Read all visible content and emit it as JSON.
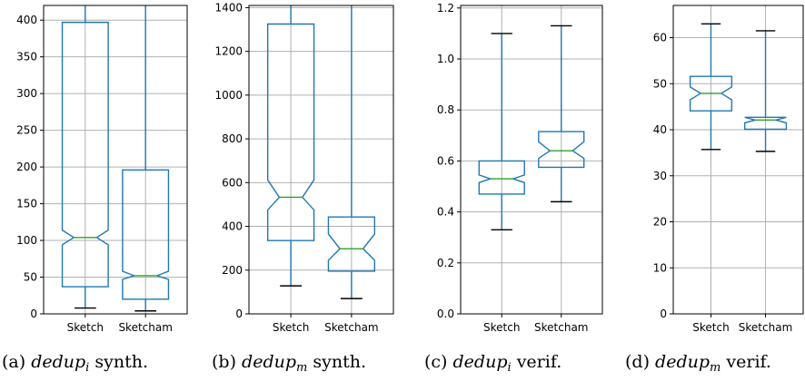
{
  "chart_data": [
    {
      "type": "box",
      "notched": true,
      "categories": [
        "Sketch",
        "Sketcham"
      ],
      "ylim": [
        0,
        420
      ],
      "yticks": [
        0,
        50,
        100,
        150,
        200,
        250,
        300,
        350,
        400
      ],
      "grid": true,
      "boxes": [
        {
          "name": "Sketch",
          "whislo": 8,
          "q1": 37,
          "med": 104,
          "q3": 397,
          "whishi": 420,
          "notch_lo": 94,
          "notch_hi": 114
        },
        {
          "name": "Sketcham",
          "whislo": 4,
          "q1": 20,
          "med": 52,
          "q3": 196,
          "whishi": 420,
          "notch_lo": 47,
          "notch_hi": 58
        }
      ],
      "caption": {
        "label": "(a)",
        "name": "dedup",
        "sub": "i",
        "suffix": "synth."
      }
    },
    {
      "type": "box",
      "notched": true,
      "categories": [
        "Sketch",
        "Sketcham"
      ],
      "ylim": [
        0,
        1410
      ],
      "yticks": [
        0,
        200,
        400,
        600,
        800,
        1000,
        1200,
        1400
      ],
      "grid": true,
      "boxes": [
        {
          "name": "Sketch",
          "whislo": 128,
          "q1": 335,
          "med": 533,
          "q3": 1325,
          "whishi": 1410,
          "notch_lo": 475,
          "notch_hi": 612
        },
        {
          "name": "Sketcham",
          "whislo": 70,
          "q1": 195,
          "med": 298,
          "q3": 443,
          "whishi": 1410,
          "notch_lo": 245,
          "notch_hi": 365
        }
      ],
      "caption": {
        "label": "(b)",
        "name": "dedup",
        "sub": "m",
        "suffix": "synth."
      }
    },
    {
      "type": "box",
      "notched": true,
      "categories": [
        "Sketch",
        "Sketcham"
      ],
      "ylim": [
        0.0,
        1.21
      ],
      "yticks": [
        0.0,
        0.2,
        0.4,
        0.6,
        0.8,
        1.0,
        1.2
      ],
      "grid": true,
      "boxes": [
        {
          "name": "Sketch",
          "whislo": 0.33,
          "q1": 0.47,
          "med": 0.53,
          "q3": 0.6,
          "whishi": 1.1,
          "notch_lo": 0.515,
          "notch_hi": 0.545
        },
        {
          "name": "Sketcham",
          "whislo": 0.44,
          "q1": 0.575,
          "med": 0.64,
          "q3": 0.715,
          "whishi": 1.13,
          "notch_lo": 0.61,
          "notch_hi": 0.675
        }
      ],
      "caption": {
        "label": "(c)",
        "name": "dedup",
        "sub": "i",
        "suffix": "verif."
      }
    },
    {
      "type": "box",
      "notched": true,
      "categories": [
        "Sketch",
        "Sketcham"
      ],
      "ylim": [
        0,
        67
      ],
      "yticks": [
        0,
        10,
        20,
        30,
        40,
        50,
        60
      ],
      "grid": true,
      "boxes": [
        {
          "name": "Sketch",
          "whislo": 35.7,
          "q1": 44.1,
          "med": 47.9,
          "q3": 51.6,
          "whishi": 63,
          "notch_lo": 46.5,
          "notch_hi": 49.3
        },
        {
          "name": "Sketcham",
          "whislo": 35.3,
          "q1": 40.1,
          "med": 42.1,
          "q3": 42.7,
          "whishi": 61.5,
          "notch_lo": 41.5,
          "notch_hi": 42.7
        }
      ],
      "caption": {
        "label": "(d)",
        "name": "dedup",
        "sub": "m",
        "suffix": "verif."
      }
    }
  ],
  "colors": {
    "box": "#1f77b4",
    "median": "#2ca02c",
    "cap": "#000000",
    "grid": "#b0b0b0"
  }
}
